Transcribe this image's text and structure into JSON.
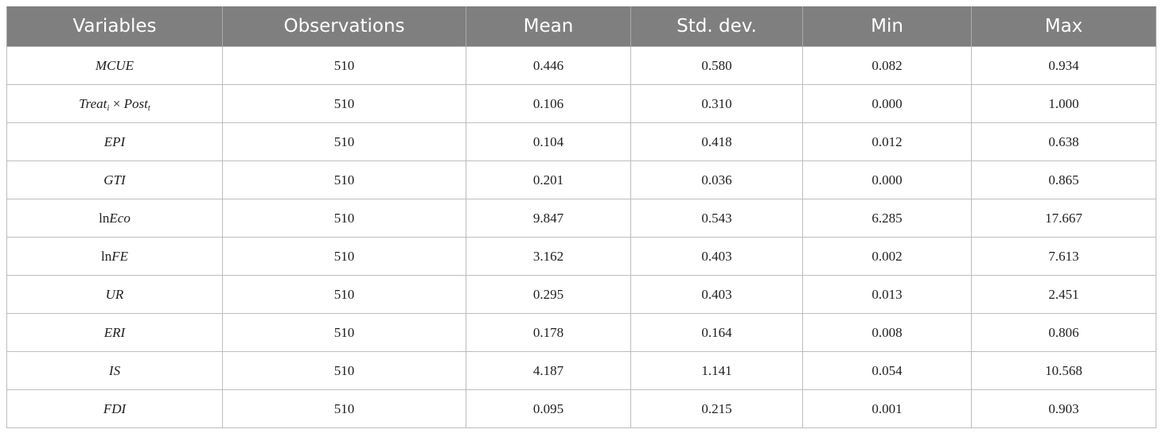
{
  "table": {
    "headers": [
      "Variables",
      "Observations",
      "Mean",
      "Std. dev.",
      "Min",
      "Max"
    ],
    "rows": [
      {
        "var_prefix": "",
        "var": "MCUE",
        "obs": "510",
        "mean": "0.446",
        "sd": "0.580",
        "min": "0.082",
        "max": "0.934"
      },
      {
        "var_parts": {
          "a": "Treat",
          "a_sub": "i",
          "op": " × ",
          "b": "Post",
          "b_sub": "t"
        },
        "obs": "510",
        "mean": "0.106",
        "sd": "0.310",
        "min": "0.000",
        "max": "1.000"
      },
      {
        "var_prefix": "",
        "var": "EPI",
        "obs": "510",
        "mean": "0.104",
        "sd": "0.418",
        "min": "0.012",
        "max": "0.638"
      },
      {
        "var_prefix": "",
        "var": "GTI",
        "obs": "510",
        "mean": "0.201",
        "sd": "0.036",
        "min": "0.000",
        "max": "0.865"
      },
      {
        "var_prefix": "ln",
        "var": "Eco",
        "obs": "510",
        "mean": "9.847",
        "sd": "0.543",
        "min": "6.285",
        "max": "17.667"
      },
      {
        "var_prefix": "ln",
        "var": "FE",
        "obs": "510",
        "mean": "3.162",
        "sd": "0.403",
        "min": "0.002",
        "max": "7.613"
      },
      {
        "var_prefix": "",
        "var": "UR",
        "obs": "510",
        "mean": "0.295",
        "sd": "0.403",
        "min": "0.013",
        "max": "2.451"
      },
      {
        "var_prefix": "",
        "var": "ERI",
        "obs": "510",
        "mean": "0.178",
        "sd": "0.164",
        "min": "0.008",
        "max": "0.806"
      },
      {
        "var_prefix": "",
        "var": "IS",
        "obs": "510",
        "mean": "4.187",
        "sd": "1.141",
        "min": "0.054",
        "max": "10.568"
      },
      {
        "var_prefix": "",
        "var": "FDI",
        "obs": "510",
        "mean": "0.095",
        "sd": "0.215",
        "min": "0.001",
        "max": "0.903"
      }
    ]
  },
  "colors": {
    "header_bg": "#7f7f7f",
    "header_text": "#ffffff",
    "grid": "#bdbdbd"
  }
}
